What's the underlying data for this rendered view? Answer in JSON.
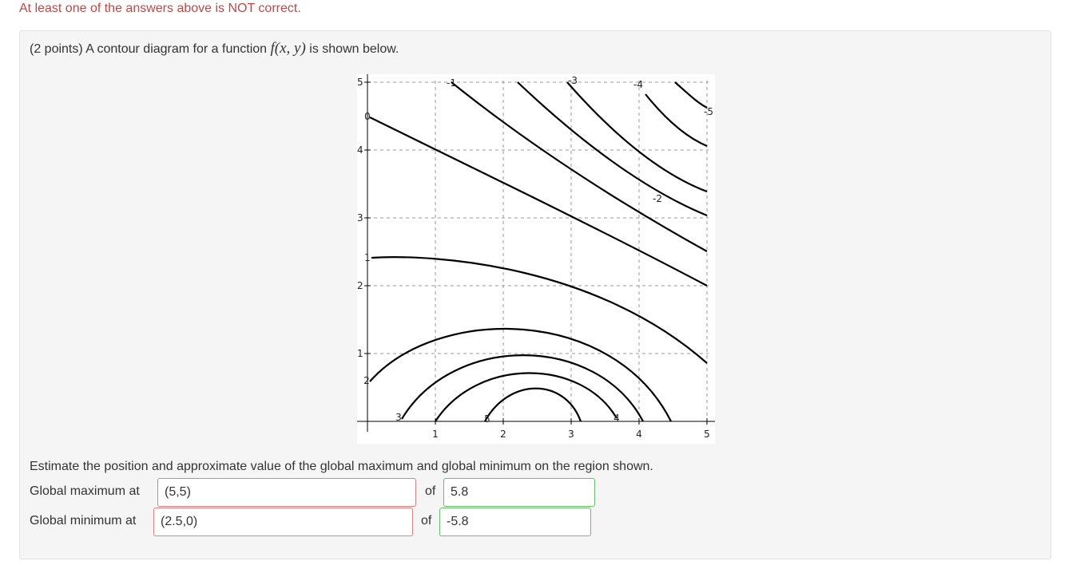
{
  "feedback": "At least one of the answers above is NOT correct.",
  "problem": {
    "intro_before": "(2 points) A contour diagram for a function",
    "math": "f(x, y)",
    "intro_after": "is shown below."
  },
  "plot": {
    "x_tick_labels": [
      "1",
      "2",
      "3",
      "4",
      "5"
    ],
    "y_tick_labels": [
      "1",
      "2",
      "3",
      "4",
      "5"
    ],
    "contour_labels": [
      "-1",
      "-3",
      "-4",
      "-5",
      "0",
      "-2",
      "1",
      "2",
      "3",
      "5",
      "4"
    ]
  },
  "question": "Estimate the position and approximate value of the global maximum and global minimum on the region shown.",
  "answers": [
    {
      "label": "Global maximum at",
      "position": "(5,5)",
      "of": "of",
      "value": "5.8"
    },
    {
      "label": "Global minimum at",
      "position": "(2.5,0)",
      "of": "of",
      "value": "-5.8"
    }
  ]
}
